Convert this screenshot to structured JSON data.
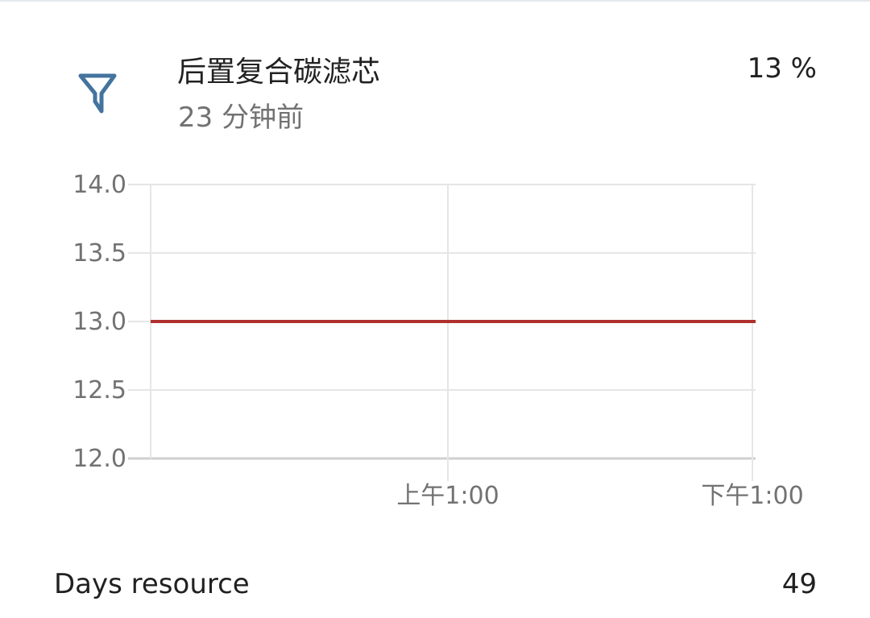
{
  "entity": {
    "name": "后置复合碳滤芯",
    "last_changed": "23 分钟前",
    "state": "13 %",
    "icon": "filter-icon",
    "icon_color": "#44739e"
  },
  "chart_data": {
    "type": "line",
    "x": [
      "上午1:00",
      "下午1:00"
    ],
    "series": [
      {
        "values": [
          13.0,
          13.0
        ],
        "color": "#b0302e"
      }
    ],
    "ylim": [
      12.0,
      14.0
    ],
    "yticks": [
      "14.0",
      "13.5",
      "13.0",
      "12.5",
      "12.0"
    ],
    "xticks": [
      "上午1:00",
      "下午1:00"
    ],
    "grid": true
  },
  "attributes": [
    {
      "label": "Days resource",
      "value": "49"
    }
  ]
}
